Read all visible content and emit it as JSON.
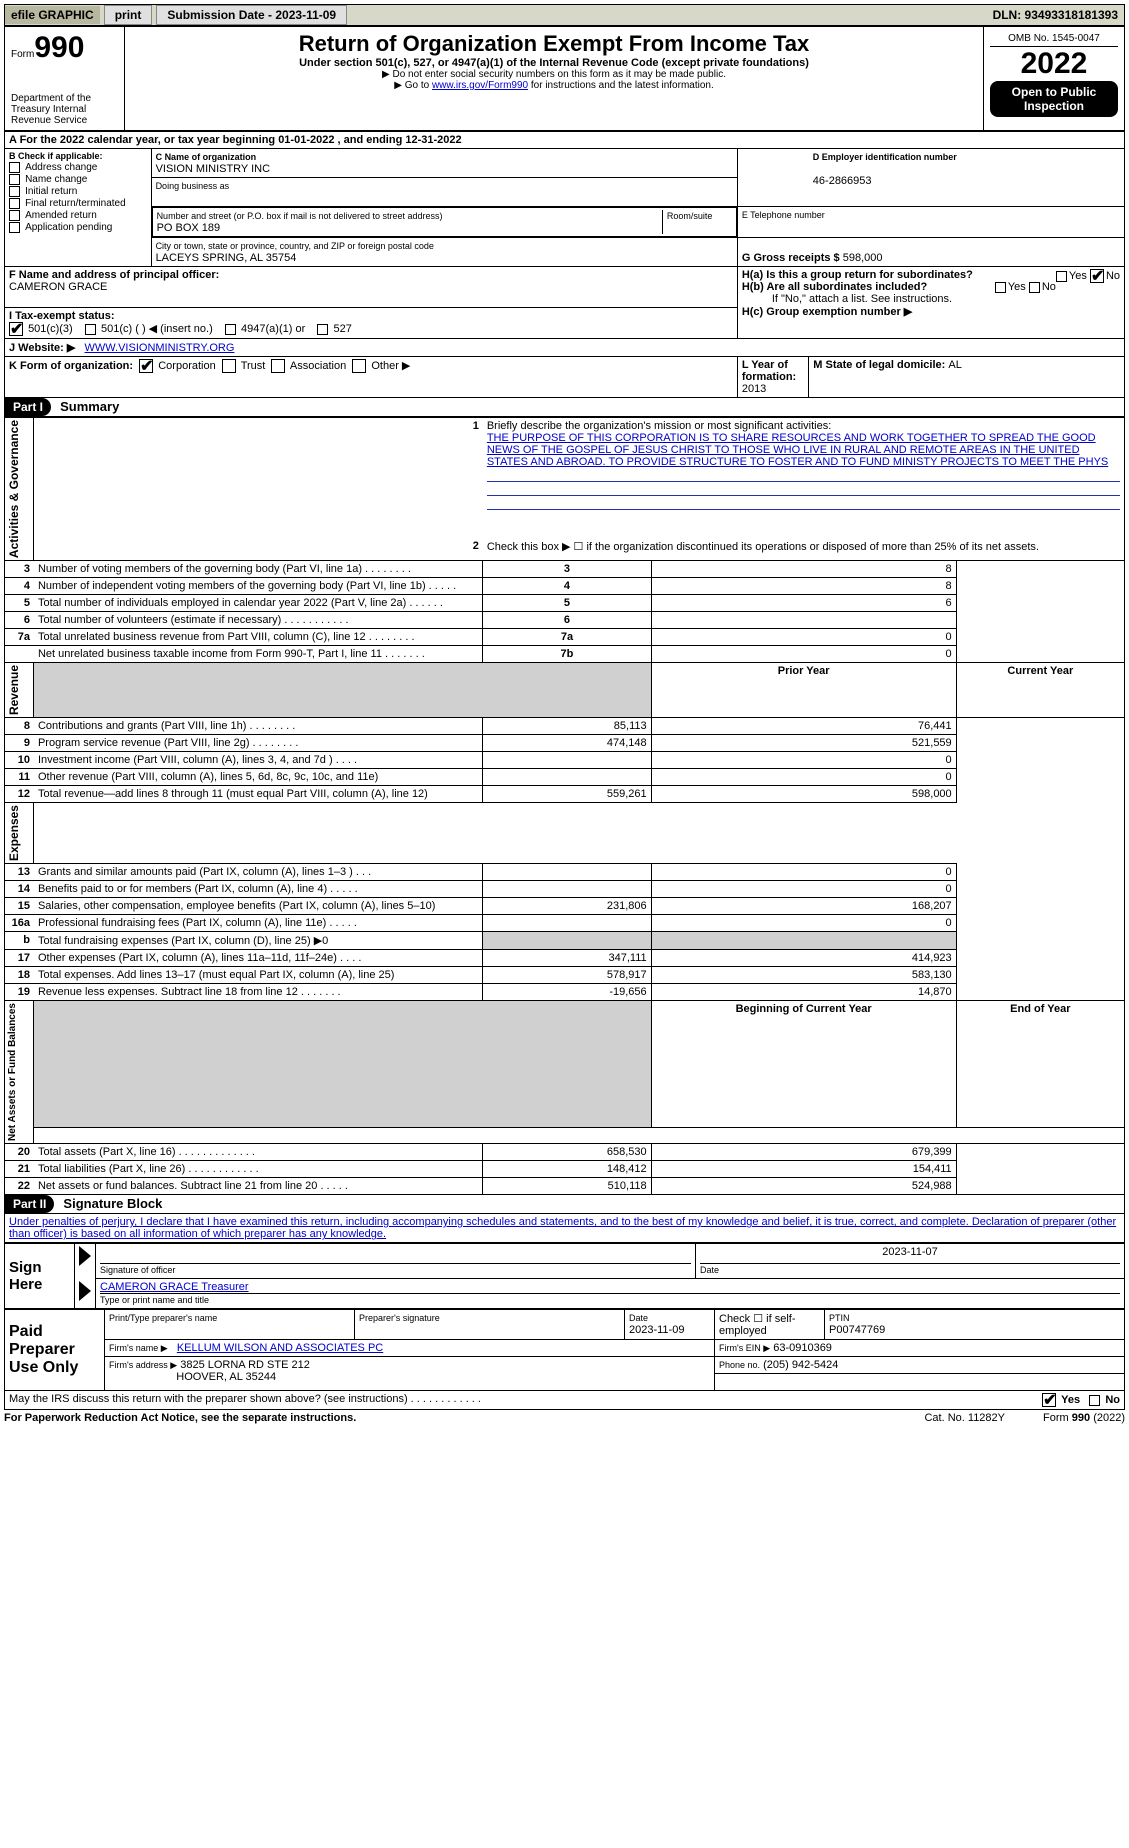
{
  "colors": {
    "topbar_bg": "#d8d8c8",
    "grey_cell": "#d0d0d0",
    "link": "#0000cc",
    "black": "#000000"
  },
  "topbar": {
    "efile": "efile GRAPHIC",
    "print": "print",
    "submission_label": "Submission Date - 2023-11-09",
    "dln_label": "DLN: 93493318181393"
  },
  "header": {
    "form_word": "Form",
    "form_num": "990",
    "title": "Return of Organization Exempt From Income Tax",
    "subtitle": "Under section 501(c), 527, or 4947(a)(1) of the Internal Revenue Code (except private foundations)",
    "note1": "▶ Do not enter social security numbers on this form as it may be made public.",
    "note2_pre": "▶ Go to ",
    "note2_link": "www.irs.gov/Form990",
    "note2_post": " for instructions and the latest information.",
    "dept": "Department of the Treasury\nInternal Revenue Service",
    "omb": "OMB No. 1545-0047",
    "year": "2022",
    "open": "Open to Public Inspection"
  },
  "sectionA": {
    "period": "A For the 2022 calendar year, or tax year beginning 01-01-2022    , and ending 12-31-2022",
    "B_label": "B Check if applicable:",
    "B_opts": [
      "Address change",
      "Name change",
      "Initial return",
      "Final return/terminated",
      "Amended return",
      "Application pending"
    ],
    "C_label": "C Name of organization",
    "C_name": "VISION MINISTRY INC",
    "dba_label": "Doing business as",
    "addr_label": "Number and street (or P.O. box if mail is not delivered to street address)",
    "addr": "PO BOX 189",
    "room_label": "Room/suite",
    "city_label": "City or town, state or province, country, and ZIP or foreign postal code",
    "city": "LACEYS SPRING, AL  35754",
    "D_label": "D Employer identification number",
    "D_val": "46-2866953",
    "E_label": "E Telephone number",
    "G_label": "G Gross receipts $",
    "G_val": "598,000",
    "F_label": "F  Name and address of principal officer:",
    "F_val": "CAMERON GRACE",
    "Ha_label": "H(a)  Is this a group return for subordinates?",
    "Hb_label": "H(b)  Are all subordinates included?",
    "H_ifno": "If \"No,\" attach a list. See instructions.",
    "Hc_label": "H(c)  Group exemption number ▶",
    "yes": "Yes",
    "no": "No",
    "I_label": "I    Tax-exempt status:",
    "I_501c3": "501(c)(3)",
    "I_501c": "501(c) (   ) ◀ (insert no.)",
    "I_4947": "4947(a)(1) or",
    "I_527": "527",
    "J_label": "J    Website: ▶",
    "J_val": "WWW.VISIONMINISTRY.ORG",
    "K_label": "K Form of organization:",
    "K_opts": [
      "Corporation",
      "Trust",
      "Association",
      "Other ▶"
    ],
    "L_label": "L Year of formation: ",
    "L_val": "2013",
    "M_label": "M State of legal domicile: ",
    "M_val": "AL"
  },
  "part1": {
    "bar": "Part I",
    "title": "Summary",
    "side_ag": "Activities & Governance",
    "side_rev": "Revenue",
    "side_exp": "Expenses",
    "side_net": "Net Assets or Fund Balances",
    "l1": "Briefly describe the organization's mission or most significant activities:",
    "l1text": "THE PURPOSE OF THIS CORPORATION IS TO SHARE RESOURCES AND WORK TOGETHER TO SPREAD THE GOOD NEWS OF THE GOSPEL OF JESUS CHRIST TO THOSE WHO LIVE IN RURAL AND REMOTE AREAS IN THE UNITED STATES AND ABROAD. TO PROVIDE STRUCTURE TO FOSTER AND TO FUND MINISTY PROJECTS TO MEET THE PHYS",
    "l2": "Check this box ▶ ☐  if the organization discontinued its operations or disposed of more than 25% of its net assets.",
    "rows_ag": [
      {
        "n": "3",
        "t": "Number of voting members of the governing body (Part VI, line 1a)   .     .     .     .     .     .     .     .",
        "box": "3",
        "v": "8"
      },
      {
        "n": "4",
        "t": "Number of independent voting members of the governing body (Part VI, line 1b)    .     .     .     .     .",
        "box": "4",
        "v": "8"
      },
      {
        "n": "5",
        "t": "Total number of individuals employed in calendar year 2022 (Part V, line 2a)   .     .     .     .     .     .",
        "box": "5",
        "v": "6"
      },
      {
        "n": "6",
        "t": "Total number of volunteers (estimate if necessary)    .     .     .     .     .     .     .     .     .     .     .",
        "box": "6",
        "v": ""
      },
      {
        "n": "7a",
        "t": "Total unrelated business revenue from Part VIII, column (C), line 12    .     .     .     .     .     .     .     .",
        "box": "7a",
        "v": "0"
      },
      {
        "n": "",
        "t": "Net unrelated business taxable income from Form 990-T, Part I, line 11    .     .     .     .     .     .     .",
        "box": "7b",
        "v": "0"
      }
    ],
    "hdr_prior": "Prior Year",
    "hdr_curr": "Current Year",
    "rows_rev": [
      {
        "n": "8",
        "t": "Contributions and grants (Part VIII, line 1h)   .     .     .     .     .     .     .     .",
        "p": "85,113",
        "c": "76,441"
      },
      {
        "n": "9",
        "t": "Program service revenue (Part VIII, line 2g)   .     .     .     .     .     .     .     .",
        "p": "474,148",
        "c": "521,559"
      },
      {
        "n": "10",
        "t": "Investment income (Part VIII, column (A), lines 3, 4, and 7d )    .     .     .     .",
        "p": "",
        "c": "0"
      },
      {
        "n": "11",
        "t": "Other revenue (Part VIII, column (A), lines 5, 6d, 8c, 9c, 10c, and 11e)",
        "p": "",
        "c": "0"
      },
      {
        "n": "12",
        "t": "Total revenue—add lines 8 through 11 (must equal Part VIII, column (A), line 12)",
        "p": "559,261",
        "c": "598,000"
      }
    ],
    "rows_exp": [
      {
        "n": "13",
        "t": "Grants and similar amounts paid (Part IX, column (A), lines 1–3 )   .     .     .",
        "p": "",
        "c": "0"
      },
      {
        "n": "14",
        "t": "Benefits paid to or for members (Part IX, column (A), line 4)   .     .     .     .     .",
        "p": "",
        "c": "0"
      },
      {
        "n": "15",
        "t": "Salaries, other compensation, employee benefits (Part IX, column (A), lines 5–10)",
        "p": "231,806",
        "c": "168,207"
      },
      {
        "n": "16a",
        "t": "Professional fundraising fees (Part IX, column (A), line 11e)   .     .     .     .     .",
        "p": "",
        "c": "0"
      },
      {
        "n": "b",
        "t": "Total fundraising expenses (Part IX, column (D), line 25) ▶0",
        "p": "GREY",
        "c": "GREY"
      },
      {
        "n": "17",
        "t": "Other expenses (Part IX, column (A), lines 11a–11d, 11f–24e)   .     .     .     .",
        "p": "347,111",
        "c": "414,923"
      },
      {
        "n": "18",
        "t": "Total expenses. Add lines 13–17 (must equal Part IX, column (A), line 25)",
        "p": "578,917",
        "c": "583,130"
      },
      {
        "n": "19",
        "t": "Revenue less expenses. Subtract line 18 from line 12   .     .     .     .     .     .     .",
        "p": "-19,656",
        "c": "14,870"
      }
    ],
    "hdr_begin": "Beginning of Current Year",
    "hdr_end": "End of Year",
    "rows_net": [
      {
        "n": "20",
        "t": "Total assets (Part X, line 16)   .     .     .     .     .     .     .     .     .     .     .     .     .",
        "p": "658,530",
        "c": "679,399"
      },
      {
        "n": "21",
        "t": "Total liabilities (Part X, line 26)    .     .     .     .     .     .     .     .     .     .     .     .",
        "p": "148,412",
        "c": "154,411"
      },
      {
        "n": "22",
        "t": "Net assets or fund balances. Subtract line 21 from line 20    .     .     .     .     .",
        "p": "510,118",
        "c": "524,988"
      }
    ]
  },
  "part2": {
    "bar": "Part II",
    "title": "Signature Block",
    "decl": "Under penalties of perjury, I declare that I have examined this return, including accompanying schedules and statements, and to the best of my knowledge and belief, it is true, correct, and complete. Declaration of preparer (other than officer) is based on all information of which preparer has any knowledge.",
    "sign_here": "Sign Here",
    "sig_officer": "Signature of officer",
    "sig_date": "Date",
    "sig_date_val": "2023-11-07",
    "officer_name": "CAMERON GRACE   Treasurer",
    "type_name": "Type or print name and title",
    "paid": "Paid Preparer Use Only",
    "prep_name_lbl": "Print/Type preparer's name",
    "prep_sig_lbl": "Preparer's signature",
    "prep_date_lbl": "Date",
    "prep_date": "2023-11-09",
    "check_self": "Check ☐ if self-employed",
    "ptin_lbl": "PTIN",
    "ptin": "P00747769",
    "firm_name_lbl": "Firm's name    ▶",
    "firm_name": "KELLUM WILSON AND ASSOCIATES PC",
    "firm_ein_lbl": "Firm's EIN ▶",
    "firm_ein": "63-0910369",
    "firm_addr_lbl": "Firm's address ▶",
    "firm_addr1": "3825 LORNA RD STE 212",
    "firm_addr2": "HOOVER, AL  35244",
    "firm_phone_lbl": "Phone no.",
    "firm_phone": "(205) 942-5424",
    "may_irs": "May the IRS discuss this return with the preparer shown above? (see instructions)    .     .     .     .     .     .     .     .     .     .     .     .",
    "paperwork": "For Paperwork Reduction Act Notice, see the separate instructions.",
    "cat": "Cat. No. 11282Y",
    "formfoot": "Form 990 (2022)"
  }
}
